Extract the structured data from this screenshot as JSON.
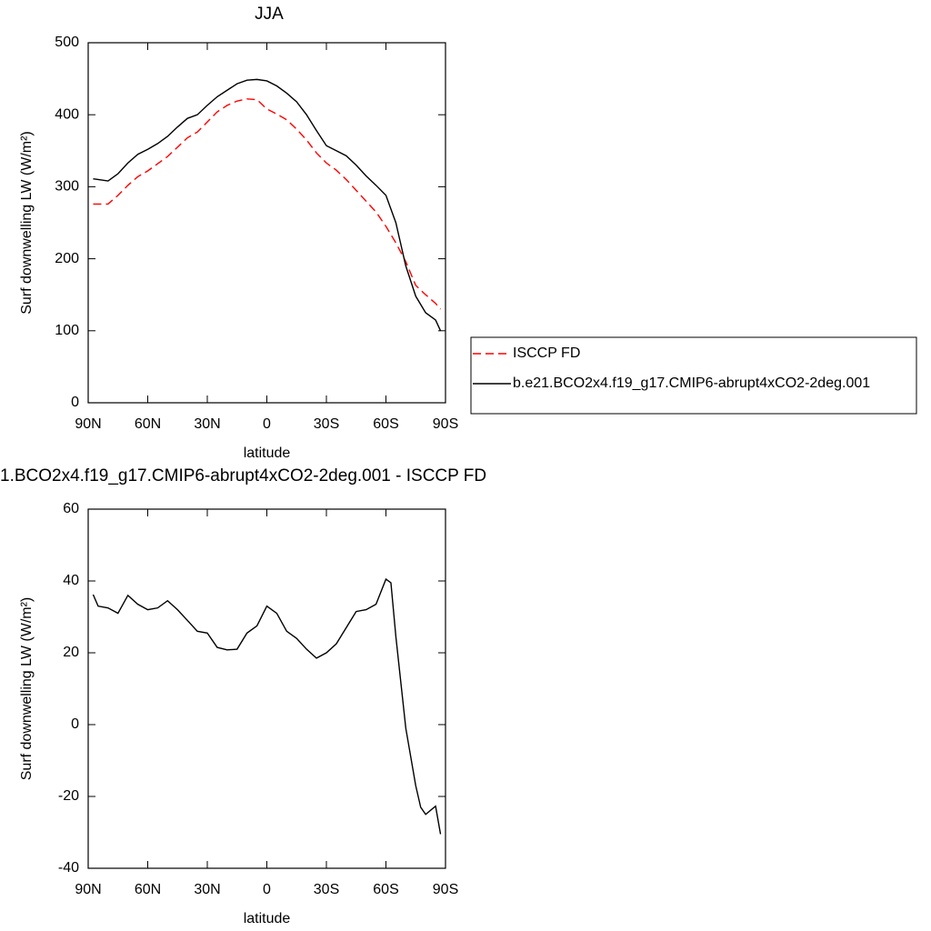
{
  "chart_data": [
    {
      "type": "line",
      "title": "JJA",
      "xlabel": "latitude",
      "ylabel": "Surf downwelling LW (W/m²)",
      "x": [
        87.5,
        85,
        80,
        75,
        70,
        65,
        60,
        55,
        50,
        45,
        40,
        35,
        30,
        25,
        20,
        15,
        10,
        5,
        0,
        -5,
        -10,
        -15,
        -20,
        -25,
        -30,
        -35,
        -40,
        -45,
        -50,
        -55,
        -60,
        -65,
        -70,
        -75,
        -80,
        -85,
        -87.5
      ],
      "series": [
        {
          "name": "ISCCP FD",
          "color": "#ff0000",
          "line_style": "dashed",
          "values": [
            276,
            276,
            276,
            288,
            302,
            314,
            322,
            332,
            342,
            355,
            368,
            376,
            390,
            404,
            413,
            419,
            422,
            421,
            408,
            401,
            393,
            380,
            365,
            347,
            333,
            323,
            310,
            295,
            280,
            265,
            245,
            222,
            196,
            163,
            150,
            138,
            130
          ]
        },
        {
          "name": "b.e21.BCO2x4.f19_g17.CMIP6-abrupt4xCO2-2deg.001",
          "color": "#000000",
          "line_style": "solid",
          "values": [
            311,
            310,
            308,
            318,
            333,
            345,
            352,
            360,
            370,
            383,
            395,
            400,
            413,
            425,
            434,
            443,
            448,
            449,
            447,
            440,
            430,
            418,
            400,
            378,
            357,
            350,
            343,
            330,
            315,
            302,
            288,
            250,
            190,
            148,
            125,
            115,
            100
          ]
        }
      ],
      "xlim": [
        90,
        -90
      ],
      "xticks": [
        {
          "value": 90,
          "label": "90N"
        },
        {
          "value": 60,
          "label": "60N"
        },
        {
          "value": 30,
          "label": "30N"
        },
        0,
        {
          "value": -30,
          "label": "30S"
        },
        {
          "value": -60,
          "label": "60S"
        },
        {
          "value": -90,
          "label": "90S"
        }
      ],
      "ylim": [
        0,
        500
      ],
      "yticks": [
        0,
        100,
        200,
        300,
        400,
        500
      ],
      "legend": "right"
    },
    {
      "type": "line",
      "title": "1.BCO2x4.f19_g17.CMIP6-abrupt4xCO2-2deg.001 - ISCCP FD",
      "xlabel": "latitude",
      "ylabel": "Surf downwelling LW (W/m²)",
      "x": [
        87.5,
        85,
        80,
        75,
        70,
        65,
        60,
        55,
        50,
        45,
        40,
        35,
        30,
        25,
        20,
        15,
        10,
        5,
        0,
        -5,
        -10,
        -15,
        -20,
        -25,
        -30,
        -35,
        -40,
        -45,
        -50,
        -55,
        -60,
        -62.5,
        -65,
        -70,
        -75,
        -77.5,
        -80,
        -85,
        -87.5
      ],
      "values": [
        36.2,
        33,
        32.5,
        31,
        36,
        33.5,
        32,
        32.5,
        34.5,
        32,
        29,
        26,
        25.5,
        21.5,
        20.8,
        21,
        25.5,
        27.5,
        33,
        31,
        26,
        24,
        21,
        18.5,
        20,
        22.5,
        27,
        31.5,
        32,
        33.5,
        40.5,
        39.5,
        24.5,
        -1,
        -17,
        -23,
        -25,
        -22.7,
        -30.5
      ],
      "color": "#000000",
      "xlim": [
        90,
        -90
      ],
      "xticks": [
        {
          "value": 90,
          "label": "90N"
        },
        {
          "value": 60,
          "label": "60N"
        },
        {
          "value": 30,
          "label": "30N"
        },
        0,
        {
          "value": -30,
          "label": "30S"
        },
        {
          "value": -60,
          "label": "60S"
        },
        {
          "value": -90,
          "label": "90S"
        }
      ],
      "ylim": [
        -40,
        60
      ],
      "yticks": [
        -40,
        -20,
        0,
        20,
        40,
        60
      ]
    }
  ]
}
